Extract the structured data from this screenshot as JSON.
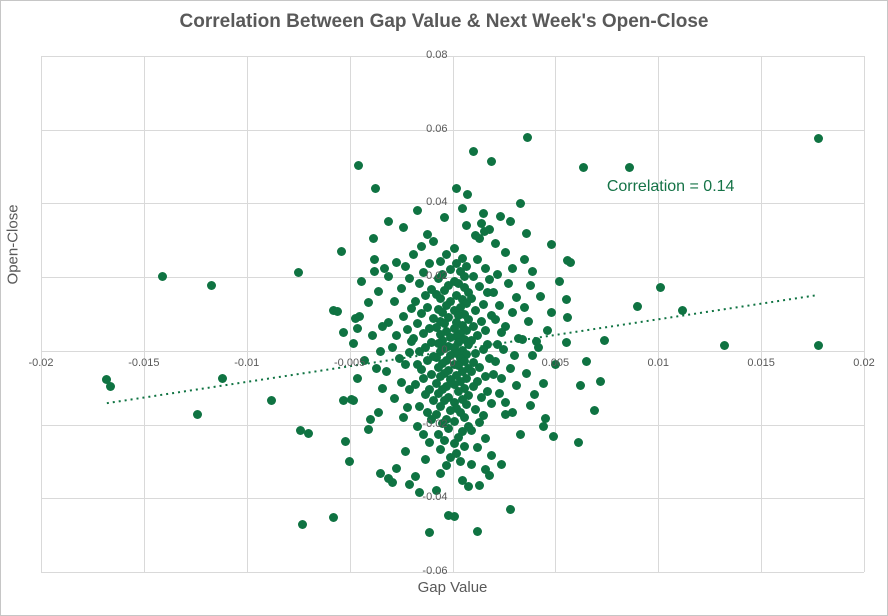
{
  "chart": {
    "title": "Correlation Between Gap Value & Next Week's Open-Close",
    "x_axis_title": "Gap Value",
    "y_axis_title": "Open-Close",
    "annotation_text": "Correlation = 0.14"
  },
  "chart_data": {
    "type": "scatter",
    "title": "Correlation Between Gap Value & Next Week's Open-Close",
    "xlabel": "Gap Value",
    "ylabel": "Open-Close",
    "xlim": [
      -0.02,
      0.02
    ],
    "ylim": [
      -0.06,
      0.08
    ],
    "grid": true,
    "x_ticks": {
      "values": [
        -0.02,
        -0.015,
        -0.01,
        -0.005,
        0,
        0.005,
        0.01,
        0.015,
        0.02
      ],
      "labels": [
        "-0.02",
        "-0.015",
        "-0.01",
        "-0.005",
        "0",
        "0.005",
        "0.01",
        "0.015",
        "0.02"
      ]
    },
    "y_ticks": {
      "values": [
        0.08,
        0.06,
        0.04,
        0.02,
        0,
        -0.02,
        -0.04,
        -0.06
      ],
      "labels": [
        "0.08",
        "0.06",
        "0.04",
        "0.02",
        "0",
        "-0.02",
        "-0.04",
        "-0.06"
      ]
    },
    "colors": {
      "point": "#0f7342",
      "trendline": "#0f7342",
      "annotation": "#157347",
      "text": "#595959",
      "gridline": "#d9d9d9"
    },
    "correlation": 0.14,
    "annotation": {
      "text": "Correlation = 0.14",
      "x": 0.0075,
      "y": 0.047
    },
    "trendline": {
      "style": "dotted",
      "x1": -0.0168,
      "y1": -0.0142,
      "x2": 0.0177,
      "y2": 0.0151
    },
    "points": [
      [
        0.0178,
        0.0575
      ],
      [
        0.00364,
        0.0578
      ],
      [
        0.00102,
        0.054
      ],
      [
        0.00189,
        0.0513
      ],
      [
        -0.00456,
        0.0502
      ],
      [
        0.00636,
        0.0497
      ],
      [
        0.0086,
        0.0497
      ],
      [
        -0.00374,
        0.044
      ],
      [
        0.0002,
        0.044
      ],
      [
        0.00074,
        0.0425
      ],
      [
        0.0033,
        0.0399
      ],
      [
        0.0005,
        0.0385
      ],
      [
        0.00233,
        0.0364
      ],
      [
        0.00143,
        0.0345
      ],
      [
        0.00155,
        0.0324
      ],
      [
        0.00112,
        0.0312
      ],
      [
        -0.0141,
        0.0201
      ],
      [
        -0.0117,
        0.0177
      ],
      [
        -0.0075,
        0.0212
      ],
      [
        -0.0054,
        0.0269
      ],
      [
        -0.0038,
        0.0214
      ],
      [
        -0.00385,
        0.0304
      ],
      [
        -0.0058,
        0.0109
      ],
      [
        -0.0056,
        0.0106
      ],
      [
        -0.0047,
        0.0087
      ],
      [
        -0.0046,
        0.006
      ],
      [
        0.0056,
        0.0244
      ],
      [
        0.00575,
        0.0241
      ],
      [
        0.0101,
        0.0171
      ],
      [
        0.009,
        0.0119
      ],
      [
        0.0112,
        0.0109
      ],
      [
        0.00553,
        0.0138
      ],
      [
        0.0056,
        0.009
      ],
      [
        0.00553,
        0.0024
      ],
      [
        0.0074,
        0.0027
      ],
      [
        0.0132,
        0.0014
      ],
      [
        0.0178,
        0.0014
      ],
      [
        0.0065,
        -0.003
      ],
      [
        0.0062,
        -0.0095
      ],
      [
        0.0072,
        -0.0084
      ],
      [
        0.0069,
        -0.0163
      ],
      [
        -0.0168,
        -0.0079
      ],
      [
        -0.0166,
        -0.0098
      ],
      [
        -0.0112,
        -0.0076
      ],
      [
        -0.0088,
        -0.0136
      ],
      [
        -0.0124,
        -0.0174
      ],
      [
        -0.0074,
        -0.0217
      ],
      [
        -0.0053,
        -0.0136
      ],
      [
        -0.0048,
        -0.0136
      ],
      [
        -0.004,
        -0.0187
      ],
      [
        -0.0073,
        -0.047
      ],
      [
        -0.0058,
        -0.0453
      ],
      [
        -0.0002,
        -0.0448
      ],
      [
        0.0001,
        -0.0449
      ],
      [
        -0.0011,
        -0.0494
      ],
      [
        0.0012,
        -0.0491
      ],
      [
        0.0028,
        -0.0431
      ],
      [
        -0.007,
        -0.0224
      ],
      [
        -0.005,
        -0.0301
      ],
      [
        0.0049,
        -0.0232
      ],
      [
        0.0061,
        -0.0249
      ],
      [
        0.0048,
        0.0288
      ],
      [
        0.0035,
        0.0248
      ],
      [
        0.0029,
        0.0223
      ],
      [
        -0.0029,
        -0.0357
      ],
      [
        -0.0016,
        -0.0385
      ],
      [
        0.0008,
        -0.0369
      ],
      [
        0.0018,
        -0.0339
      ],
      [
        -0.0035,
        -0.0332
      ],
      [
        0.0026,
        -0.0172
      ],
      [
        0.0001,
        0.0278
      ],
      [
        -0.0003,
        0.0262
      ],
      [
        0.0005,
        0.0251
      ],
      [
        -0.0006,
        0.0243
      ],
      [
        0.0002,
        0.0236
      ],
      [
        0.0007,
        0.0229
      ],
      [
        -0.0001,
        0.0221
      ],
      [
        0.0004,
        0.0215
      ],
      [
        -0.0005,
        0.0208
      ],
      [
        0.0006,
        0.0201
      ],
      [
        -0.0007,
        0.0195
      ],
      [
        0.0001,
        0.0189
      ],
      [
        0.0003,
        0.0182
      ],
      [
        -0.0002,
        0.0176
      ],
      [
        0.0006,
        0.0171
      ],
      [
        -0.0004,
        0.0165
      ],
      [
        0.0008,
        0.0159
      ],
      [
        -0.0008,
        0.0154
      ],
      [
        0.0002,
        0.0149
      ],
      [
        -0.0006,
        0.0143
      ],
      [
        0.0005,
        0.0138
      ],
      [
        -0.0001,
        0.0133
      ],
      [
        0.0007,
        0.0128
      ],
      [
        -0.0003,
        0.0123
      ],
      [
        0.0004,
        0.0118
      ],
      [
        -0.0007,
        0.0113
      ],
      [
        0.0001,
        0.0109
      ],
      [
        -0.0005,
        0.0104
      ],
      [
        0.0006,
        0.0099
      ],
      [
        0.0003,
        0.0095
      ],
      [
        -0.0002,
        0.009
      ],
      [
        0.0008,
        0.0086
      ],
      [
        -0.0006,
        0.0081
      ],
      [
        0.0002,
        0.0077
      ],
      [
        -0.0004,
        0.0073
      ],
      [
        0.0005,
        0.0068
      ],
      [
        -0.0008,
        0.0064
      ],
      [
        0.0001,
        0.006
      ],
      [
        0.0007,
        0.0056
      ],
      [
        -0.0003,
        0.0052
      ],
      [
        0.0004,
        0.0048
      ],
      [
        -0.0006,
        0.0044
      ],
      [
        0.0002,
        0.004
      ],
      [
        -0.0001,
        0.0036
      ],
      [
        0.0006,
        0.0032
      ],
      [
        -0.0005,
        0.0028
      ],
      [
        0.0003,
        0.0024
      ],
      [
        -0.0007,
        0.0021
      ],
      [
        0.0008,
        0.0017
      ],
      [
        -0.0002,
        0.0013
      ],
      [
        0.0001,
        0.0009
      ],
      [
        -0.0004,
        0.0006
      ],
      [
        0.0005,
        0.0002
      ],
      [
        -0.0006,
        -0.0002
      ],
      [
        0.0002,
        -0.0006
      ],
      [
        0.0007,
        -0.0009
      ],
      [
        -0.0001,
        -0.0013
      ],
      [
        -0.0008,
        -0.0017
      ],
      [
        0.0004,
        -0.0021
      ],
      [
        -0.0003,
        -0.0025
      ],
      [
        0.0006,
        -0.0029
      ],
      [
        -0.0005,
        -0.0033
      ],
      [
        0.0001,
        -0.0037
      ],
      [
        0.0003,
        -0.0041
      ],
      [
        -0.0007,
        -0.0045
      ],
      [
        0.0008,
        -0.0049
      ],
      [
        -0.0002,
        -0.0053
      ],
      [
        0.0005,
        -0.0057
      ],
      [
        -0.0004,
        -0.0061
      ],
      [
        0.0002,
        -0.0066
      ],
      [
        -0.0006,
        -0.007
      ],
      [
        0.0007,
        -0.0074
      ],
      [
        -0.0001,
        -0.0079
      ],
      [
        0.0004,
        -0.0083
      ],
      [
        -0.0008,
        -0.0088
      ],
      [
        0.0001,
        -0.0092
      ],
      [
        -0.0003,
        -0.0097
      ],
      [
        0.0006,
        -0.0101
      ],
      [
        -0.0005,
        -0.0106
      ],
      [
        0.0003,
        -0.0111
      ],
      [
        -0.0007,
        -0.0116
      ],
      [
        0.0008,
        -0.0121
      ],
      [
        -0.0002,
        -0.0126
      ],
      [
        0.0005,
        -0.0131
      ],
      [
        -0.0004,
        -0.0136
      ],
      [
        0.0001,
        -0.0141
      ],
      [
        0.0007,
        -0.0146
      ],
      [
        -0.0006,
        -0.0151
      ],
      [
        0.0002,
        -0.0157
      ],
      [
        -0.0001,
        -0.0162
      ],
      [
        0.0004,
        -0.0168
      ],
      [
        -0.0008,
        -0.0174
      ],
      [
        0.0006,
        -0.018
      ],
      [
        -0.0003,
        -0.0186
      ],
      [
        0.0001,
        -0.0192
      ],
      [
        -0.0005,
        -0.0198
      ],
      [
        0.0008,
        -0.0205
      ],
      [
        -0.0002,
        -0.0212
      ],
      [
        0.0005,
        -0.0219
      ],
      [
        -0.0007,
        -0.0226
      ],
      [
        0.0003,
        -0.0234
      ],
      [
        -0.0004,
        -0.0242
      ],
      [
        0.0001,
        -0.025
      ],
      [
        0.0006,
        -0.0259
      ],
      [
        -0.0006,
        -0.0268
      ],
      [
        0.0002,
        -0.0278
      ],
      [
        -0.0001,
        -0.0288
      ],
      [
        0.0004,
        -0.0299
      ],
      [
        -0.0003,
        -0.0311
      ],
      [
        0.0012,
        0.0247
      ],
      [
        -0.0011,
        0.0236
      ],
      [
        0.0016,
        0.0224
      ],
      [
        -0.0014,
        0.0213
      ],
      [
        0.001,
        0.0203
      ],
      [
        0.0018,
        0.0193
      ],
      [
        -0.0016,
        0.0184
      ],
      [
        0.0013,
        0.0175
      ],
      [
        -0.001,
        0.0166
      ],
      [
        0.0017,
        0.0157
      ],
      [
        -0.0013,
        0.0149
      ],
      [
        0.0009,
        0.0141
      ],
      [
        -0.0018,
        0.0133
      ],
      [
        0.0015,
        0.0125
      ],
      [
        -0.0012,
        0.0117
      ],
      [
        0.0011,
        0.011
      ],
      [
        -0.0015,
        0.0102
      ],
      [
        0.0019,
        0.0095
      ],
      [
        -0.0009,
        0.0088
      ],
      [
        0.0014,
        0.0081
      ],
      [
        -0.0017,
        0.0074
      ],
      [
        0.001,
        0.0067
      ],
      [
        -0.0011,
        0.006
      ],
      [
        0.0016,
        0.0054
      ],
      [
        -0.0014,
        0.0047
      ],
      [
        0.0012,
        0.0041
      ],
      [
        -0.0019,
        0.0034
      ],
      [
        0.0009,
        0.0028
      ],
      [
        -0.001,
        0.0022
      ],
      [
        0.0017,
        0.0016
      ],
      [
        -0.0013,
        0.001
      ],
      [
        0.0015,
        0.0004
      ],
      [
        -0.0016,
        -0.0002
      ],
      [
        0.0011,
        -0.0008
      ],
      [
        -0.0009,
        -0.0014
      ],
      [
        0.0018,
        -0.002
      ],
      [
        -0.0012,
        -0.0026
      ],
      [
        0.001,
        -0.0032
      ],
      [
        -0.0017,
        -0.0038
      ],
      [
        0.0013,
        -0.0044
      ],
      [
        -0.0015,
        -0.0051
      ],
      [
        0.0009,
        -0.0057
      ],
      [
        -0.001,
        -0.0063
      ],
      [
        0.0016,
        -0.007
      ],
      [
        -0.0014,
        -0.0076
      ],
      [
        0.0012,
        -0.0083
      ],
      [
        -0.0018,
        -0.009
      ],
      [
        0.001,
        -0.0097
      ],
      [
        -0.0011,
        -0.0104
      ],
      [
        0.0017,
        -0.0111
      ],
      [
        -0.0013,
        -0.0118
      ],
      [
        0.0014,
        -0.0126
      ],
      [
        -0.0009,
        -0.0134
      ],
      [
        0.0019,
        -0.0142
      ],
      [
        -0.0016,
        -0.015
      ],
      [
        0.0011,
        -0.0158
      ],
      [
        -0.0012,
        -0.0167
      ],
      [
        0.0015,
        -0.0176
      ],
      [
        -0.001,
        -0.0185
      ],
      [
        0.0013,
        -0.0195
      ],
      [
        -0.0017,
        -0.0205
      ],
      [
        0.0009,
        -0.0215
      ],
      [
        -0.0014,
        -0.0226
      ],
      [
        0.0016,
        -0.0237
      ],
      [
        -0.0011,
        -0.0249
      ],
      [
        0.0012,
        -0.0262
      ],
      [
        0.0022,
        0.0208
      ],
      [
        -0.0021,
        0.0195
      ],
      [
        0.0027,
        0.0182
      ],
      [
        -0.0025,
        0.0169
      ],
      [
        0.002,
        0.0157
      ],
      [
        0.0031,
        0.0146
      ],
      [
        -0.0028,
        0.0135
      ],
      [
        0.0023,
        0.0124
      ],
      [
        -0.002,
        0.0114
      ],
      [
        0.0029,
        0.0104
      ],
      [
        -0.0024,
        0.0094
      ],
      [
        0.0021,
        0.0085
      ],
      [
        -0.0031,
        0.0076
      ],
      [
        0.0026,
        0.0067
      ],
      [
        -0.0022,
        0.0058
      ],
      [
        0.0024,
        0.005
      ],
      [
        -0.0027,
        0.0042
      ],
      [
        0.0032,
        0.0034
      ],
      [
        -0.002,
        0.0026
      ],
      [
        0.0022,
        0.0018
      ],
      [
        -0.0029,
        0.001
      ],
      [
        0.0025,
        0.0003
      ],
      [
        -0.0021,
        -0.0005
      ],
      [
        0.003,
        -0.0013
      ],
      [
        -0.0026,
        -0.0021
      ],
      [
        0.0021,
        -0.0029
      ],
      [
        -0.0023,
        -0.0038
      ],
      [
        0.0028,
        -0.0047
      ],
      [
        -0.0032,
        -0.0056
      ],
      [
        0.002,
        -0.0065
      ],
      [
        0.0024,
        -0.0075
      ],
      [
        -0.0025,
        -0.0085
      ],
      [
        0.0031,
        -0.0095
      ],
      [
        -0.0021,
        -0.0106
      ],
      [
        0.0023,
        -0.0117
      ],
      [
        -0.0028,
        -0.0129
      ],
      [
        0.0026,
        -0.0141
      ],
      [
        -0.0022,
        -0.0154
      ],
      [
        0.0029,
        -0.0168
      ],
      [
        -0.0024,
        -0.0182
      ],
      [
        0.0038,
        0.0176
      ],
      [
        -0.0036,
        0.0162
      ],
      [
        0.0043,
        0.0147
      ],
      [
        -0.0041,
        0.0132
      ],
      [
        0.0035,
        0.0118
      ],
      [
        0.0048,
        0.0105
      ],
      [
        -0.0045,
        0.0092
      ],
      [
        0.0037,
        0.0079
      ],
      [
        -0.0034,
        0.0067
      ],
      [
        0.0046,
        0.0055
      ],
      [
        -0.0039,
        0.0043
      ],
      [
        0.0034,
        0.0031
      ],
      [
        -0.0048,
        0.002
      ],
      [
        0.0042,
        0.0009
      ],
      [
        -0.0035,
        -0.0002
      ],
      [
        0.0039,
        -0.0013
      ],
      [
        -0.0043,
        -0.0025
      ],
      [
        0.005,
        -0.0037
      ],
      [
        -0.0037,
        -0.0049
      ],
      [
        0.0036,
        -0.0062
      ],
      [
        -0.0046,
        -0.0075
      ],
      [
        0.0044,
        -0.0089
      ],
      [
        -0.0034,
        -0.0103
      ],
      [
        0.004,
        -0.0118
      ],
      [
        -0.0049,
        -0.0133
      ],
      [
        0.0038,
        -0.0149
      ],
      [
        -0.0036,
        -0.0166
      ],
      [
        0.0045,
        -0.0184
      ],
      [
        -0.0019,
        0.0262
      ],
      [
        -0.0027,
        0.0241
      ],
      [
        -0.0033,
        0.0224
      ],
      [
        -0.0023,
        0.0228
      ],
      [
        -0.0038,
        0.0248
      ],
      [
        -0.0044,
        0.0189
      ],
      [
        -0.0031,
        0.0203
      ],
      [
        0.0039,
        0.0215
      ],
      [
        0.0052,
        0.0189
      ],
      [
        0.0026,
        0.0266
      ],
      [
        0.0021,
        0.0291
      ],
      [
        -0.0015,
        0.0282
      ],
      [
        0.0013,
        0.0304
      ],
      [
        -0.0009,
        0.0296
      ],
      [
        0.0044,
        -0.0204
      ],
      [
        -0.0041,
        -0.0214
      ],
      [
        0.0033,
        -0.0226
      ],
      [
        -0.0052,
        -0.0247
      ],
      [
        0.0019,
        -0.0285
      ],
      [
        -0.0023,
        -0.0272
      ],
      [
        0.0041,
        0.0026
      ],
      [
        -0.0053,
        0.0049
      ],
      [
        -0.0013,
        -0.0295
      ],
      [
        0.0009,
        -0.0307
      ],
      [
        -0.0027,
        -0.0318
      ],
      [
        0.0016,
        -0.0322
      ],
      [
        -0.0006,
        -0.0332
      ],
      [
        0.0024,
        -0.0308
      ],
      [
        -0.0018,
        -0.0341
      ],
      [
        0.0005,
        -0.0352
      ],
      [
        -0.0031,
        -0.0346
      ],
      [
        0.0013,
        -0.0366
      ],
      [
        -0.0008,
        -0.0378
      ],
      [
        -0.0021,
        -0.0362
      ],
      [
        -0.0012,
        0.0315
      ],
      [
        0.0018,
        0.0328
      ],
      [
        -0.0024,
        0.0334
      ],
      [
        0.0007,
        0.0341
      ],
      [
        -0.0031,
        0.0352
      ],
      [
        0.0028,
        0.0352
      ],
      [
        -0.0004,
        0.0363
      ],
      [
        0.0015,
        0.0374
      ],
      [
        -0.0017,
        0.0381
      ],
      [
        0.0036,
        0.0318
      ]
    ]
  }
}
